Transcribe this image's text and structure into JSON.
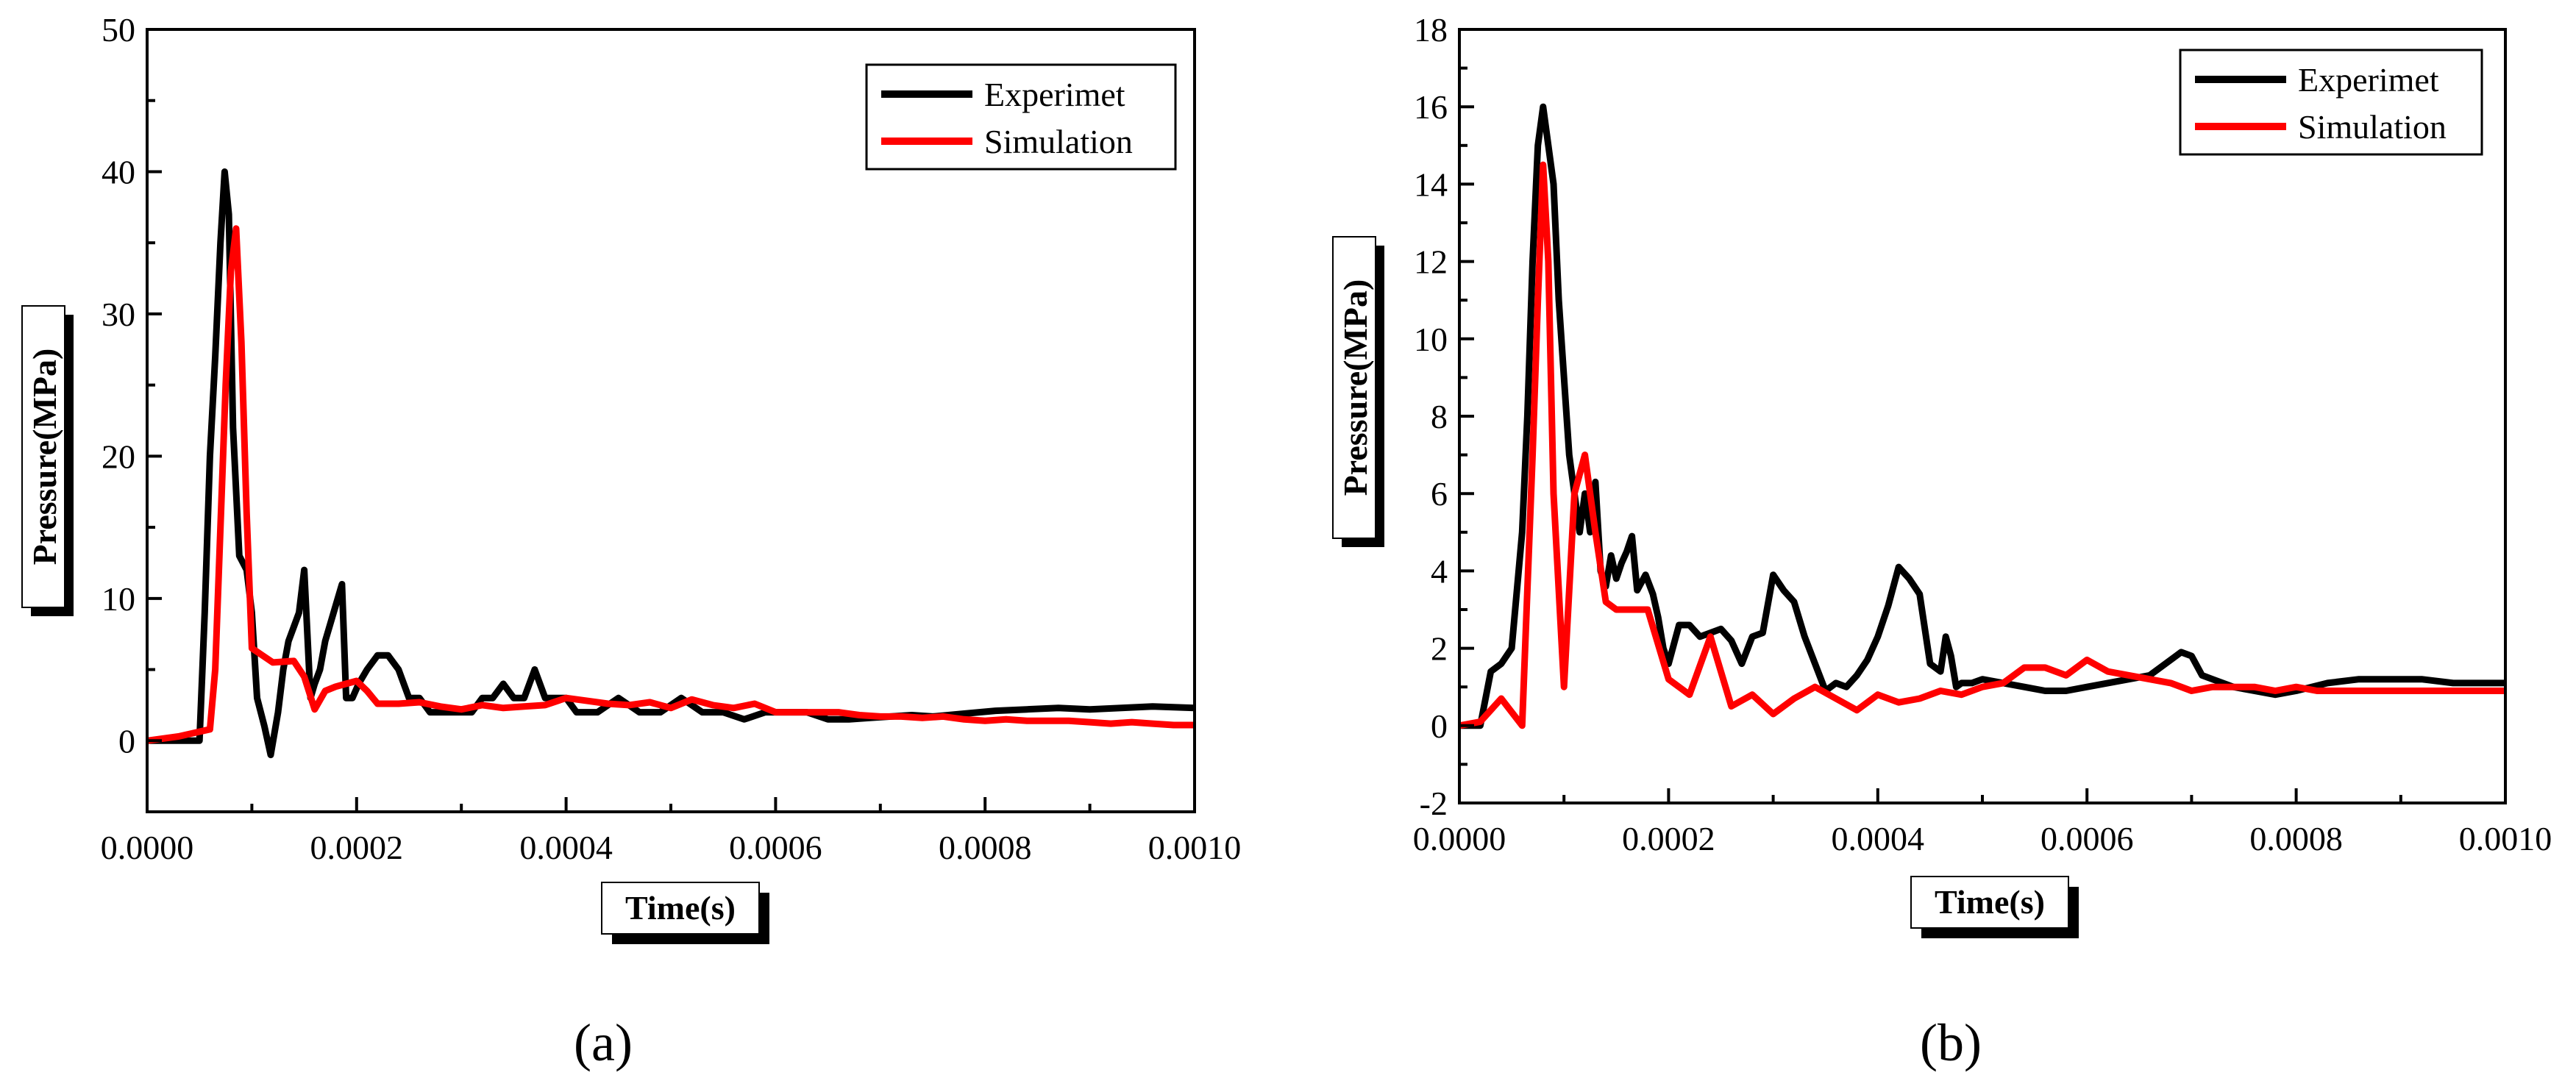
{
  "chart_data": [
    {
      "type": "line",
      "panel_label": "(a)",
      "xlabel": "Time(s)",
      "ylabel": "Pressure(MPa)",
      "xlim": [
        0,
        0.001
      ],
      "ylim": [
        -5,
        50
      ],
      "xticks": [
        0,
        0.0002,
        0.0004,
        0.0006,
        0.0008,
        0.001
      ],
      "xtick_labels": [
        "0.0000",
        "0.0002",
        "0.0004",
        "0.0006",
        "0.0008",
        "0.0010"
      ],
      "yticks": [
        0,
        10,
        20,
        30,
        40,
        50
      ],
      "ytick_labels": [
        "0",
        "10",
        "20",
        "30",
        "40",
        "50"
      ],
      "legend": [
        "Experimet",
        "Simulation"
      ],
      "series": [
        {
          "name": "Experimet",
          "color": "#000000",
          "x": [
            0,
            5e-05,
            5.5e-05,
            6e-05,
            6.5e-05,
            7e-05,
            7.4e-05,
            7.8e-05,
            8.2e-05,
            8.8e-05,
            9.5e-05,
            0.0001,
            0.000105,
            0.000112,
            0.000118,
            0.000125,
            0.00013,
            0.000135,
            0.00014,
            0.000145,
            0.00015,
            0.000156,
            0.00016,
            0.000165,
            0.00017,
            0.000178,
            0.000186,
            0.00019,
            0.000196,
            0.000202,
            0.00021,
            0.00022,
            0.00023,
            0.00024,
            0.00025,
            0.00026,
            0.00027,
            0.00028,
            0.0003,
            0.00031,
            0.00032,
            0.00033,
            0.00034,
            0.00035,
            0.00036,
            0.00037,
            0.00038,
            0.0004,
            0.00041,
            0.00043,
            0.00045,
            0.00047,
            0.00049,
            0.00051,
            0.00053,
            0.00055,
            0.00057,
            0.00059,
            0.00061,
            0.00063,
            0.00065,
            0.00067,
            0.00069,
            0.00071,
            0.00073,
            0.00075,
            0.00078,
            0.00081,
            0.00084,
            0.00087,
            0.0009,
            0.00093,
            0.00096,
            0.001
          ],
          "y": [
            0,
            0,
            9,
            20,
            27,
            35,
            40,
            37,
            22,
            13,
            12,
            9,
            3,
            1,
            -1,
            2,
            5,
            7,
            8,
            9,
            12,
            3,
            4,
            5,
            7,
            9,
            11,
            3,
            3,
            4,
            5,
            6,
            6,
            5,
            3,
            3,
            2,
            2,
            2,
            2,
            3,
            3,
            4,
            3,
            3,
            5,
            3,
            3,
            2,
            2,
            3,
            2,
            2,
            3,
            2,
            2,
            1.5,
            2,
            2,
            2,
            1.5,
            1.5,
            1.6,
            1.7,
            1.8,
            1.7,
            1.9,
            2.1,
            2.2,
            2.3,
            2.2,
            2.3,
            2.4,
            2.3
          ]
        },
        {
          "name": "Simulation",
          "color": "#ff0000",
          "x": [
            0,
            3e-05,
            6e-05,
            6.5e-05,
            7e-05,
            7.5e-05,
            8e-05,
            8.5e-05,
            9e-05,
            9.5e-05,
            0.0001,
            0.00011,
            0.00012,
            0.00014,
            0.00015,
            0.00016,
            0.00017,
            0.00018,
            0.00019,
            0.0002,
            0.00021,
            0.00022,
            0.00024,
            0.00026,
            0.00028,
            0.0003,
            0.00032,
            0.00034,
            0.00036,
            0.00038,
            0.0004,
            0.00042,
            0.00044,
            0.00046,
            0.00048,
            0.0005,
            0.00052,
            0.00054,
            0.00056,
            0.00058,
            0.0006,
            0.00062,
            0.00064,
            0.00066,
            0.00068,
            0.0007,
            0.00072,
            0.00074,
            0.00076,
            0.00078,
            0.0008,
            0.00082,
            0.00084,
            0.00086,
            0.00088,
            0.0009,
            0.00092,
            0.00094,
            0.00096,
            0.00098,
            0.001
          ],
          "y": [
            0,
            0.3,
            0.8,
            5,
            15,
            25,
            33,
            36,
            28,
            16,
            6.5,
            6,
            5.5,
            5.6,
            4.5,
            2.2,
            3.5,
            3.8,
            4,
            4.2,
            3.5,
            2.6,
            2.6,
            2.7,
            2.4,
            2.2,
            2.5,
            2.3,
            2.4,
            2.5,
            3,
            2.8,
            2.6,
            2.5,
            2.7,
            2.3,
            2.9,
            2.5,
            2.3,
            2.6,
            2,
            2,
            2,
            2,
            1.8,
            1.7,
            1.7,
            1.6,
            1.7,
            1.5,
            1.4,
            1.5,
            1.4,
            1.4,
            1.4,
            1.3,
            1.2,
            1.3,
            1.2,
            1.1,
            1.1
          ]
        }
      ]
    },
    {
      "type": "line",
      "panel_label": "(b)",
      "xlabel": "Time(s)",
      "ylabel": "Pressure(MPa)",
      "xlim": [
        0,
        0.001
      ],
      "ylim": [
        -2,
        18
      ],
      "xticks": [
        0,
        0.0002,
        0.0004,
        0.0006,
        0.0008,
        0.001
      ],
      "xtick_labels": [
        "0.0000",
        "0.0002",
        "0.0004",
        "0.0006",
        "0.0008",
        "0.0010"
      ],
      "yticks": [
        -2,
        0,
        2,
        4,
        6,
        8,
        10,
        12,
        14,
        16,
        18
      ],
      "ytick_labels": [
        "-2",
        "0",
        "2",
        "4",
        "6",
        "8",
        "10",
        "12",
        "14",
        "16",
        "18"
      ],
      "legend": [
        "Experimet",
        "Simulation"
      ],
      "series": [
        {
          "name": "Experimet",
          "color": "#000000",
          "x": [
            0,
            2e-05,
            3e-05,
            4e-05,
            5e-05,
            6e-05,
            6.5e-05,
            7e-05,
            7.5e-05,
            8e-05,
            8.5e-05,
            9e-05,
            9.5e-05,
            0.0001,
            0.000105,
            0.00011,
            0.000115,
            0.00012,
            0.000125,
            0.00013,
            0.000135,
            0.00014,
            0.000145,
            0.00015,
            0.000155,
            0.00016,
            0.000165,
            0.00017,
            0.000178,
            0.000185,
            0.00019,
            0.000195,
            0.0002,
            0.00021,
            0.00022,
            0.00023,
            0.00024,
            0.00025,
            0.00026,
            0.00027,
            0.00028,
            0.00029,
            0.0003,
            0.00031,
            0.00032,
            0.00033,
            0.00034,
            0.00035,
            0.00036,
            0.00037,
            0.00038,
            0.00039,
            0.0004,
            0.00041,
            0.00042,
            0.00043,
            0.00044,
            0.00045,
            0.00046,
            0.000465,
            0.00047,
            0.000475,
            0.00048,
            0.00049,
            0.0005,
            0.00052,
            0.00054,
            0.00056,
            0.00058,
            0.0006,
            0.00062,
            0.00064,
            0.00066,
            0.00068,
            0.00069,
            0.0007,
            0.00071,
            0.00072,
            0.00074,
            0.00076,
            0.00078,
            0.0008,
            0.00083,
            0.00086,
            0.00089,
            0.00092,
            0.00095,
            0.00098,
            0.001
          ],
          "y": [
            0,
            0,
            1.4,
            1.6,
            2,
            5,
            8,
            12,
            15,
            16,
            15,
            14,
            11,
            9,
            7,
            6,
            5,
            6,
            5,
            6.3,
            4,
            3.6,
            4.4,
            3.8,
            4.2,
            4.5,
            4.9,
            3.5,
            3.9,
            3.4,
            2.8,
            2,
            1.6,
            2.6,
            2.6,
            2.3,
            2.4,
            2.5,
            2.2,
            1.6,
            2.3,
            2.4,
            3.9,
            3.5,
            3.2,
            2.3,
            1.6,
            0.9,
            1.1,
            1,
            1.3,
            1.7,
            2.3,
            3.1,
            4.1,
            3.8,
            3.4,
            1.6,
            1.4,
            2.3,
            1.8,
            1,
            1.1,
            1.1,
            1.2,
            1.1,
            1,
            0.9,
            0.9,
            1,
            1.1,
            1.2,
            1.3,
            1.7,
            1.9,
            1.8,
            1.3,
            1.2,
            1,
            0.9,
            0.8,
            0.9,
            1.1,
            1.2,
            1.2,
            1.2,
            1.1,
            1.1,
            1.1
          ]
        },
        {
          "name": "Simulation",
          "color": "#ff0000",
          "x": [
            0,
            2e-05,
            4e-05,
            6e-05,
            7e-05,
            7.5e-05,
            8e-05,
            8.5e-05,
            9e-05,
            0.0001,
            0.00011,
            0.00012,
            0.00013,
            0.00014,
            0.00015,
            0.00016,
            0.00018,
            0.0002,
            0.00022,
            0.00024,
            0.00026,
            0.00028,
            0.0003,
            0.00032,
            0.00034,
            0.00036,
            0.00038,
            0.0004,
            0.00042,
            0.00044,
            0.00046,
            0.00048,
            0.0005,
            0.00052,
            0.00054,
            0.00056,
            0.00058,
            0.0006,
            0.00062,
            0.00064,
            0.00066,
            0.00068,
            0.0007,
            0.00072,
            0.00074,
            0.00076,
            0.00078,
            0.0008,
            0.00082,
            0.00084,
            0.00086,
            0.00088,
            0.0009,
            0.00092,
            0.00094,
            0.00096,
            0.00098,
            0.001
          ],
          "y": [
            0,
            0.1,
            0.7,
            0,
            7,
            11,
            14.5,
            12,
            6,
            1,
            6,
            7,
            5,
            3.2,
            3,
            3,
            3,
            1.2,
            0.8,
            2.3,
            0.5,
            0.8,
            0.3,
            0.7,
            1,
            0.7,
            0.4,
            0.8,
            0.6,
            0.7,
            0.9,
            0.8,
            1,
            1.1,
            1.5,
            1.5,
            1.3,
            1.7,
            1.4,
            1.3,
            1.2,
            1.1,
            0.9,
            1,
            1,
            1,
            0.9,
            1,
            0.9,
            0.9,
            0.9,
            0.9,
            0.9,
            0.9,
            0.9,
            0.9,
            0.9,
            0.9
          ]
        }
      ]
    }
  ]
}
